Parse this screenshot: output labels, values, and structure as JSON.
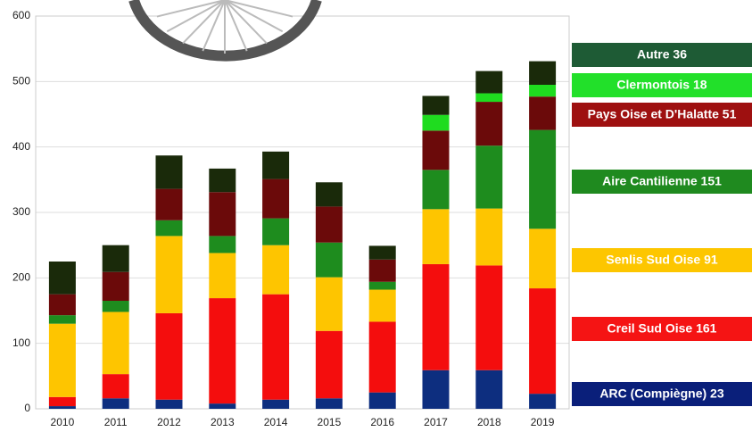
{
  "chart_data": {
    "type": "stacked_bar",
    "categories": [
      "2010",
      "2011",
      "2012",
      "2013",
      "2014",
      "2015",
      "2016",
      "2017",
      "2018",
      "2019"
    ],
    "series": [
      {
        "name": "ARC (Compiègne) 23",
        "color": "#0d2e7f",
        "legend_color": "#0a1f7a",
        "values": [
          4,
          16,
          14,
          8,
          14,
          16,
          25,
          59,
          59,
          23
        ]
      },
      {
        "name": "Creil Sud Oise 161",
        "color": "#f40d0d",
        "legend_color": "#f51414",
        "values": [
          14,
          37,
          132,
          161,
          161,
          103,
          108,
          162,
          160,
          161
        ]
      },
      {
        "name": "Senlis Sud Oise 91",
        "color": "#fec500",
        "legend_color": "#fdc600",
        "values": [
          112,
          95,
          118,
          69,
          75,
          82,
          49,
          84,
          87,
          91
        ]
      },
      {
        "name": "Aire Cantilienne 151",
        "color": "#1e8c1e",
        "legend_color": "#1f8a1f",
        "values": [
          13,
          17,
          24,
          26,
          41,
          53,
          12,
          60,
          96,
          151
        ]
      },
      {
        "name": "Pays Oise et D'Halatte 51",
        "color": "#6b0a0a",
        "legend_color": "#9e1010",
        "values": [
          32,
          44,
          48,
          67,
          60,
          55,
          34,
          60,
          67,
          51
        ]
      },
      {
        "name": "Clermontois 18",
        "color": "#1fdc1f",
        "legend_color": "#22e02a",
        "values": [
          0,
          0,
          0,
          0,
          0,
          0,
          0,
          24,
          13,
          18
        ]
      },
      {
        "name": "Autre 36",
        "color": "#1a2a0a",
        "legend_color": "#1e5b35",
        "values": [
          50,
          41,
          51,
          36,
          42,
          37,
          21,
          29,
          34,
          36
        ]
      }
    ],
    "ylim": [
      0,
      600
    ],
    "yticks": [
      0,
      100,
      200,
      300,
      400,
      500,
      600
    ],
    "grid": true
  }
}
